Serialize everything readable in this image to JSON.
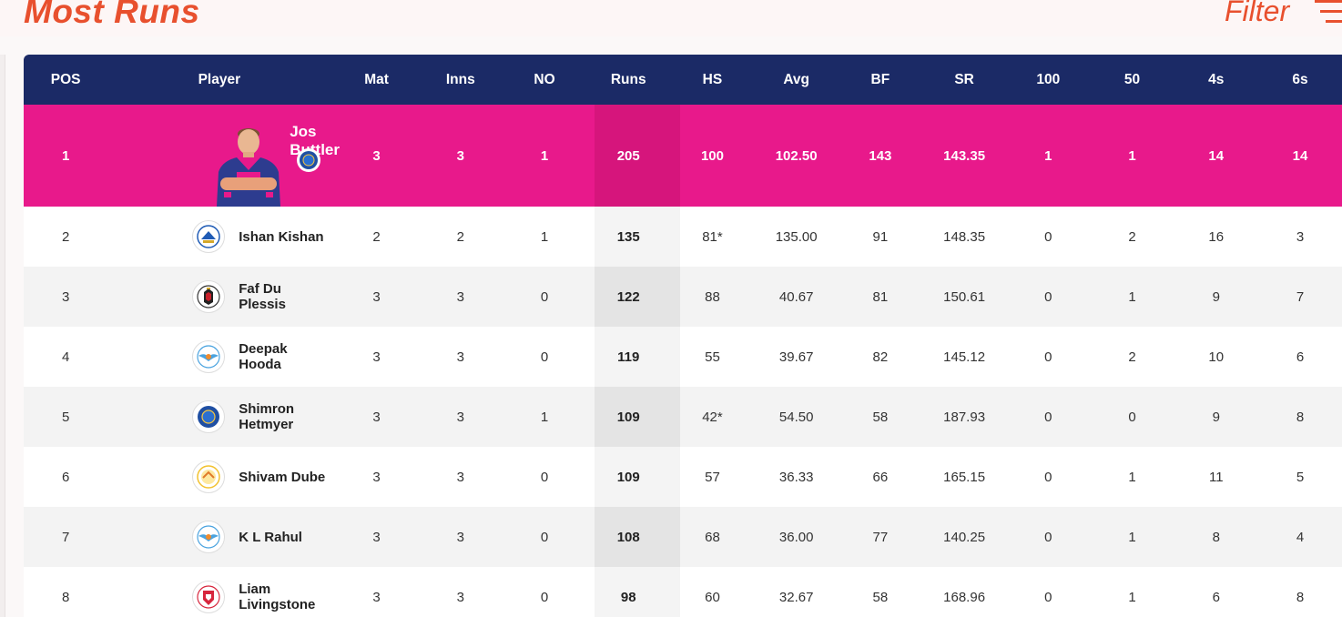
{
  "page": {
    "title": "Most Runs",
    "filter_label": "Filter"
  },
  "columns": [
    "POS",
    "Player",
    "Mat",
    "Inns",
    "NO",
    "Runs",
    "HS",
    "Avg",
    "BF",
    "SR",
    "100",
    "50",
    "4s",
    "6s"
  ],
  "rows": [
    {
      "pos": "1",
      "player": "Jos Buttler",
      "team_icon": "rr-logo-icon",
      "mat": "3",
      "inns": "3",
      "no": "1",
      "runs": "205",
      "hs": "100",
      "avg": "102.50",
      "bf": "143",
      "sr": "143.35",
      "hundreds": "1",
      "fifties": "1",
      "fours": "14",
      "sixes": "14"
    },
    {
      "pos": "2",
      "player": "Ishan Kishan",
      "team_icon": "mi-logo-icon",
      "mat": "2",
      "inns": "2",
      "no": "1",
      "runs": "135",
      "hs": "81*",
      "avg": "135.00",
      "bf": "91",
      "sr": "148.35",
      "hundreds": "0",
      "fifties": "2",
      "fours": "16",
      "sixes": "3"
    },
    {
      "pos": "3",
      "player": "Faf Du Plessis",
      "team_icon": "rcb-logo-icon",
      "mat": "3",
      "inns": "3",
      "no": "0",
      "runs": "122",
      "hs": "88",
      "avg": "40.67",
      "bf": "81",
      "sr": "150.61",
      "hundreds": "0",
      "fifties": "1",
      "fours": "9",
      "sixes": "7"
    },
    {
      "pos": "4",
      "player": "Deepak Hooda",
      "team_icon": "lsg-logo-icon",
      "mat": "3",
      "inns": "3",
      "no": "0",
      "runs": "119",
      "hs": "55",
      "avg": "39.67",
      "bf": "82",
      "sr": "145.12",
      "hundreds": "0",
      "fifties": "2",
      "fours": "10",
      "sixes": "6"
    },
    {
      "pos": "5",
      "player": "Shimron Hetmyer",
      "team_icon": "rr-logo-icon",
      "mat": "3",
      "inns": "3",
      "no": "1",
      "runs": "109",
      "hs": "42*",
      "avg": "54.50",
      "bf": "58",
      "sr": "187.93",
      "hundreds": "0",
      "fifties": "0",
      "fours": "9",
      "sixes": "8"
    },
    {
      "pos": "6",
      "player": "Shivam Dube",
      "team_icon": "csk-logo-icon",
      "mat": "3",
      "inns": "3",
      "no": "0",
      "runs": "109",
      "hs": "57",
      "avg": "36.33",
      "bf": "66",
      "sr": "165.15",
      "hundreds": "0",
      "fifties": "1",
      "fours": "11",
      "sixes": "5"
    },
    {
      "pos": "7",
      "player": "K L Rahul",
      "team_icon": "lsg-logo-icon",
      "mat": "3",
      "inns": "3",
      "no": "0",
      "runs": "108",
      "hs": "68",
      "avg": "36.00",
      "bf": "77",
      "sr": "140.25",
      "hundreds": "0",
      "fifties": "1",
      "fours": "8",
      "sixes": "4"
    },
    {
      "pos": "8",
      "player": "Liam Livingstone",
      "team_icon": "pbks-logo-icon",
      "mat": "3",
      "inns": "3",
      "no": "0",
      "runs": "98",
      "hs": "60",
      "avg": "32.67",
      "bf": "58",
      "sr": "168.96",
      "hundreds": "0",
      "fifties": "1",
      "fours": "6",
      "sixes": "8"
    }
  ],
  "colors": {
    "accent": "#e8502e",
    "header_bg": "#1b2a66",
    "leader_row_bg": "#e8198b"
  }
}
